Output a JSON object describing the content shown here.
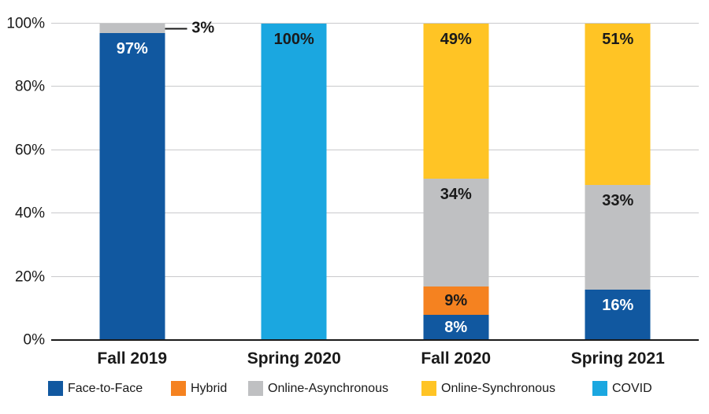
{
  "figure": {
    "background": "#ffffff",
    "text_color": "#1a1a1a",
    "grid_color": "#c9cacc",
    "axis_color": "#1a1a1a"
  },
  "chart_data": {
    "type": "bar",
    "subtype": "stacked-vertical",
    "title": "",
    "xlabel": "",
    "ylabel": "",
    "categories": [
      "Fall 2019",
      "Spring 2020",
      "Fall 2020",
      "Spring 2021"
    ],
    "series": [
      {
        "name": "Face-to-Face",
        "color": "#1158a0",
        "label_color": "#ffffff",
        "values": [
          97,
          0,
          8,
          16
        ]
      },
      {
        "name": "Hybrid",
        "color": "#f58220",
        "label_color": "#1a1a1a",
        "values": [
          0,
          0,
          9,
          0
        ]
      },
      {
        "name": "Online-Asynchronous",
        "color": "#bfc0c2",
        "label_color": "#1a1a1a",
        "values": [
          3,
          0,
          34,
          33
        ]
      },
      {
        "name": "Online-Synchronous",
        "color": "#ffc425",
        "label_color": "#1a1a1a",
        "values": [
          0,
          0,
          49,
          51
        ]
      },
      {
        "name": "COVID",
        "color": "#1ba7e0",
        "label_color": "#1a1a1a",
        "values": [
          0,
          100,
          0,
          0
        ]
      }
    ],
    "data_label_format": "{value}%",
    "annotations": [
      {
        "category_index": 0,
        "series_index": 2,
        "text": "3%",
        "style": "callout-right"
      }
    ],
    "ylim": [
      0,
      100
    ],
    "ytick_step": 20,
    "yticks": [
      "0%",
      "20%",
      "40%",
      "60%",
      "80%",
      "100%"
    ],
    "grid": true,
    "legend_position": "bottom"
  }
}
